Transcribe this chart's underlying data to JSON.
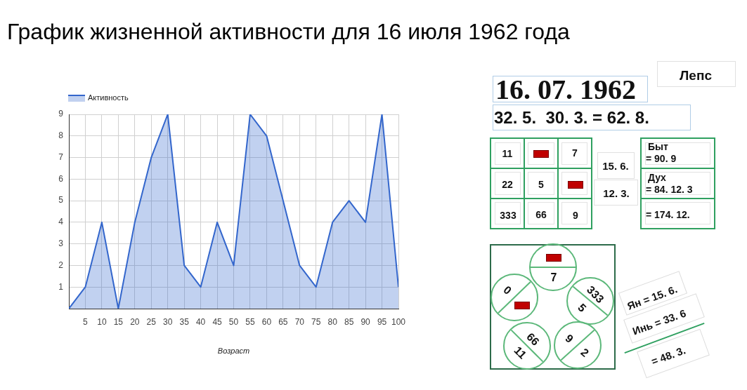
{
  "chart_data": [
    {
      "type": "area",
      "title": "График жизненной активности для 16 июля 1962 года",
      "xlabel": "Возраст",
      "x": [
        0,
        5,
        10,
        15,
        20,
        25,
        30,
        35,
        40,
        45,
        50,
        55,
        60,
        65,
        70,
        75,
        80,
        85,
        90,
        95,
        100
      ],
      "series": [
        {
          "name": "Активность",
          "color": "#3366cc",
          "values": [
            0,
            1,
            4,
            0,
            4,
            7,
            9,
            2,
            1,
            4,
            2,
            9,
            8,
            5,
            2,
            1,
            4,
            5,
            4,
            9,
            1
          ]
        }
      ],
      "xlim": [
        0,
        100
      ],
      "xticks": [
        5,
        10,
        15,
        20,
        25,
        30,
        35,
        40,
        45,
        50,
        55,
        60,
        65,
        70,
        75,
        80,
        85,
        90,
        95,
        100
      ],
      "ylim": [
        0,
        9
      ],
      "yticks": [
        1,
        2,
        3,
        4,
        5,
        6,
        7,
        8,
        9
      ],
      "grid": true,
      "legend": "top left"
    },
    {
      "type": "other",
      "annotations": [
        "Лепс",
        "16. 07. 1962",
        "32. 5.  30. 3. = 62. 8.",
        "11",
        "7",
        "22",
        "5",
        "333",
        "66",
        "9",
        "15. 6.",
        "12. 3.",
        "Быт",
        "= 90. 9",
        "Дух",
        "= 84. 12. 3",
        "= 174. 12.",
        "7",
        "0",
        "333",
        "5",
        "66",
        "11",
        "9",
        "2",
        "Ян = 15. 6.",
        "Инь = 33. 6",
        "= 48. 3."
      ]
    }
  ]
}
